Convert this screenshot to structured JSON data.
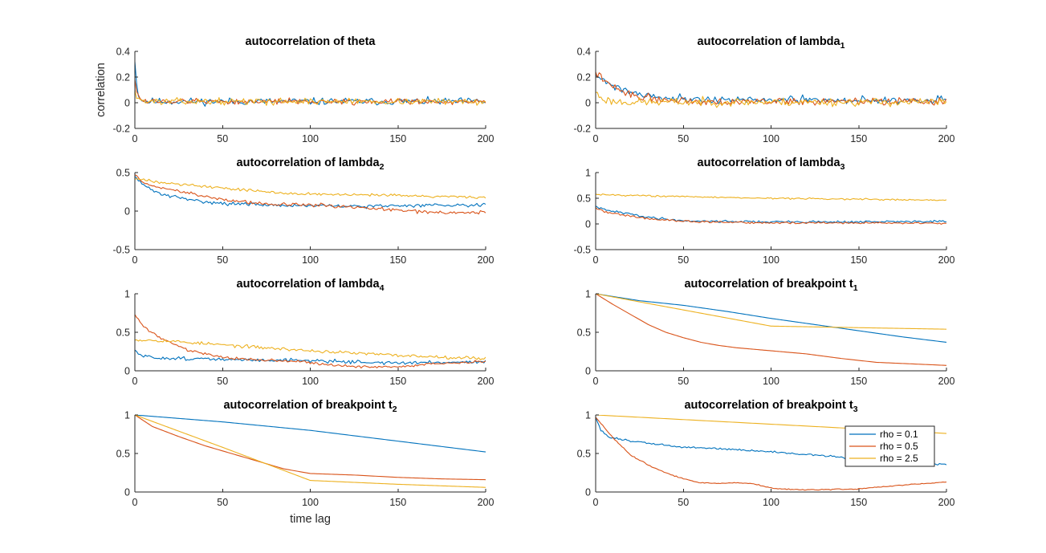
{
  "figure": {
    "legend": {
      "placement": "inside, right of bottom-right panel",
      "entries": [
        "rho = 0.1",
        "rho = 0.5",
        "rho = 2.5"
      ]
    },
    "colors": {
      "rho_0_1": "#0072BD",
      "rho_0_5": "#D95319",
      "rho_2_5": "#EDB120"
    }
  },
  "chart_data": [
    {
      "type": "line",
      "title": "autocorrelation of theta",
      "title_main": "autocorrelation of theta",
      "title_sub": "",
      "xlabel": "",
      "ylabel": "correlation",
      "xlim": [
        0,
        200
      ],
      "ylim": [
        -0.2,
        0.4
      ],
      "xticks": [
        0,
        50,
        100,
        150,
        200
      ],
      "yticks": [
        -0.2,
        0,
        0.2,
        0.4
      ],
      "xtick_labels": [
        "0",
        "50",
        "100",
        "150",
        "200"
      ],
      "ytick_labels": [
        "-0.2",
        "0",
        "0.2",
        "0.4"
      ],
      "grid": false,
      "series": [
        {
          "name": "rho = 0.1",
          "color": "#0072BD",
          "shape": "spike",
          "start": 0.32,
          "k": 1.2,
          "end": 0.01,
          "noise": 0.017,
          "seed": 11
        },
        {
          "name": "rho = 0.5",
          "color": "#D95319",
          "shape": "spike",
          "start": 0.18,
          "k": 1.5,
          "end": 0.01,
          "noise": 0.014,
          "seed": 12
        },
        {
          "name": "rho = 2.5",
          "color": "#EDB120",
          "shape": "spike",
          "start": 0.1,
          "k": 1.5,
          "end": 0.01,
          "noise": 0.015,
          "seed": 13
        }
      ]
    },
    {
      "type": "line",
      "title": "autocorrelation of lambda1",
      "title_main": "autocorrelation of lambda",
      "title_sub": "1",
      "xlabel": "",
      "ylabel": "",
      "xlim": [
        0,
        200
      ],
      "ylim": [
        -0.2,
        0.4
      ],
      "xticks": [
        0,
        50,
        100,
        150,
        200
      ],
      "yticks": [
        -0.2,
        0,
        0.2,
        0.4
      ],
      "xtick_labels": [
        "0",
        "50",
        "100",
        "150",
        "200"
      ],
      "ytick_labels": [
        "-0.2",
        "0",
        "0.2",
        "0.4"
      ],
      "grid": false,
      "series": [
        {
          "name": "rho = 0.1",
          "color": "#0072BD",
          "shape": "exp",
          "start": 0.22,
          "k": 18,
          "end": 0.02,
          "noise": 0.018,
          "seed": 21
        },
        {
          "name": "rho = 0.5",
          "color": "#D95319",
          "shape": "exp",
          "start": 0.24,
          "k": 14,
          "end": 0.01,
          "noise": 0.018,
          "seed": 22
        },
        {
          "name": "rho = 2.5",
          "color": "#EDB120",
          "shape": "exp",
          "start": 0.08,
          "k": 4,
          "end": 0.005,
          "noise": 0.02,
          "seed": 23
        }
      ]
    },
    {
      "type": "line",
      "title": "autocorrelation of lambda2",
      "title_main": "autocorrelation of lambda",
      "title_sub": "2",
      "xlabel": "",
      "ylabel": "",
      "xlim": [
        0,
        200
      ],
      "ylim": [
        -0.5,
        0.5
      ],
      "xticks": [
        0,
        50,
        100,
        150,
        200
      ],
      "yticks": [
        -0.5,
        0,
        0.5
      ],
      "xtick_labels": [
        "0",
        "50",
        "100",
        "150",
        "200"
      ],
      "ytick_labels": [
        "-0.5",
        "0",
        "0.5"
      ],
      "grid": false,
      "series": [
        {
          "name": "rho = 0.1",
          "color": "#0072BD",
          "shape": "points",
          "x": [
            0,
            5,
            15,
            30,
            50,
            75,
            100,
            125,
            150,
            175,
            200
          ],
          "y": [
            0.45,
            0.33,
            0.22,
            0.15,
            0.1,
            0.08,
            0.07,
            0.06,
            0.07,
            0.08,
            0.08
          ],
          "noise": 0.014,
          "seed": 31
        },
        {
          "name": "rho = 0.5",
          "color": "#D95319",
          "shape": "points",
          "x": [
            0,
            5,
            15,
            30,
            50,
            75,
            100,
            125,
            150,
            175,
            200
          ],
          "y": [
            0.47,
            0.36,
            0.3,
            0.24,
            0.15,
            0.09,
            0.08,
            0.05,
            0.01,
            -0.02,
            -0.02
          ],
          "noise": 0.014,
          "seed": 32
        },
        {
          "name": "rho = 2.5",
          "color": "#EDB120",
          "shape": "points",
          "x": [
            0,
            5,
            15,
            30,
            50,
            75,
            100,
            125,
            150,
            175,
            200
          ],
          "y": [
            0.42,
            0.4,
            0.38,
            0.34,
            0.3,
            0.25,
            0.22,
            0.21,
            0.2,
            0.19,
            0.18
          ],
          "noise": 0.012,
          "seed": 33
        }
      ]
    },
    {
      "type": "line",
      "title": "autocorrelation of lambda3",
      "title_main": "autocorrelation of lambda",
      "title_sub": "3",
      "xlabel": "",
      "ylabel": "",
      "xlim": [
        0,
        200
      ],
      "ylim": [
        -0.5,
        1
      ],
      "xticks": [
        0,
        50,
        100,
        150,
        200
      ],
      "yticks": [
        -0.5,
        0,
        0.5,
        1
      ],
      "xtick_labels": [
        "0",
        "50",
        "100",
        "150",
        "200"
      ],
      "ytick_labels": [
        "-0.5",
        "0",
        "0.5",
        "1"
      ],
      "grid": false,
      "series": [
        {
          "name": "rho = 0.1",
          "color": "#0072BD",
          "shape": "points",
          "x": [
            0,
            5,
            15,
            30,
            50,
            75,
            100,
            150,
            200
          ],
          "y": [
            0.35,
            0.27,
            0.22,
            0.13,
            0.06,
            0.05,
            0.04,
            0.04,
            0.05
          ],
          "noise": 0.014,
          "seed": 41
        },
        {
          "name": "rho = 0.5",
          "color": "#D95319",
          "shape": "points",
          "x": [
            0,
            5,
            15,
            30,
            50,
            75,
            100,
            150,
            200
          ],
          "y": [
            0.32,
            0.23,
            0.18,
            0.1,
            0.05,
            0.03,
            0.02,
            0.02,
            0.01
          ],
          "noise": 0.012,
          "seed": 42
        },
        {
          "name": "rho = 2.5",
          "color": "#EDB120",
          "shape": "points",
          "x": [
            0,
            5,
            50,
            100,
            150,
            200
          ],
          "y": [
            0.58,
            0.57,
            0.53,
            0.5,
            0.48,
            0.46
          ],
          "noise": 0.01,
          "seed": 43
        }
      ]
    },
    {
      "type": "line",
      "title": "autocorrelation of lambda4",
      "title_main": "autocorrelation of lambda",
      "title_sub": "4",
      "xlabel": "",
      "ylabel": "",
      "xlim": [
        0,
        200
      ],
      "ylim": [
        0,
        1
      ],
      "xticks": [
        0,
        50,
        100,
        150,
        200
      ],
      "yticks": [
        0,
        0.5,
        1
      ],
      "xtick_labels": [
        "0",
        "50",
        "100",
        "150",
        "200"
      ],
      "ytick_labels": [
        "0",
        "0.5",
        "1"
      ],
      "grid": false,
      "series": [
        {
          "name": "rho = 0.1",
          "color": "#0072BD",
          "shape": "points",
          "x": [
            0,
            3,
            10,
            30,
            60,
            90,
            120,
            150,
            175,
            200
          ],
          "y": [
            0.27,
            0.2,
            0.17,
            0.16,
            0.14,
            0.14,
            0.12,
            0.1,
            0.11,
            0.12
          ],
          "noise": 0.014,
          "seed": 51
        },
        {
          "name": "rho = 0.5",
          "color": "#D95319",
          "shape": "points",
          "x": [
            0,
            5,
            15,
            30,
            50,
            70,
            90,
            110,
            130,
            150,
            175,
            200
          ],
          "y": [
            0.73,
            0.57,
            0.42,
            0.27,
            0.18,
            0.14,
            0.13,
            0.08,
            0.05,
            0.05,
            0.1,
            0.12
          ],
          "noise": 0.01,
          "seed": 52
        },
        {
          "name": "rho = 2.5",
          "color": "#EDB120",
          "shape": "points",
          "x": [
            0,
            10,
            30,
            60,
            100,
            150,
            200
          ],
          "y": [
            0.4,
            0.4,
            0.37,
            0.32,
            0.26,
            0.2,
            0.16
          ],
          "noise": 0.013,
          "seed": 53
        }
      ]
    },
    {
      "type": "line",
      "title": "autocorrelation of breakpoint t1",
      "title_main": "autocorrelation of breakpoint t",
      "title_sub": "1",
      "xlabel": "",
      "ylabel": "",
      "xlim": [
        0,
        200
      ],
      "ylim": [
        0,
        1
      ],
      "xticks": [
        0,
        50,
        100,
        150,
        200
      ],
      "yticks": [
        0,
        0.5,
        1
      ],
      "xtick_labels": [
        "0",
        "50",
        "100",
        "150",
        "200"
      ],
      "ytick_labels": [
        "0",
        "0.5",
        "1"
      ],
      "grid": false,
      "series": [
        {
          "name": "rho = 0.1",
          "color": "#0072BD",
          "shape": "points",
          "x": [
            0,
            25,
            50,
            75,
            100,
            125,
            150,
            175,
            200
          ],
          "y": [
            1.0,
            0.91,
            0.85,
            0.77,
            0.68,
            0.6,
            0.52,
            0.44,
            0.37
          ],
          "noise": 0.0,
          "seed": 61
        },
        {
          "name": "rho = 0.5",
          "color": "#D95319",
          "shape": "points",
          "x": [
            0,
            10,
            20,
            30,
            40,
            50,
            60,
            70,
            80,
            100,
            120,
            140,
            160,
            180,
            200
          ],
          "y": [
            1.0,
            0.86,
            0.73,
            0.6,
            0.5,
            0.43,
            0.37,
            0.33,
            0.3,
            0.26,
            0.22,
            0.16,
            0.11,
            0.09,
            0.07
          ],
          "noise": 0.0,
          "seed": 62
        },
        {
          "name": "rho = 2.5",
          "color": "#EDB120",
          "shape": "points",
          "x": [
            0,
            100,
            150,
            200
          ],
          "y": [
            1.0,
            0.58,
            0.56,
            0.54
          ],
          "noise": 0.0,
          "seed": 63
        }
      ]
    },
    {
      "type": "line",
      "title": "autocorrelation of breakpoint t2",
      "title_main": "autocorrelation of breakpoint t",
      "title_sub": "2",
      "xlabel": "time lag",
      "ylabel": "",
      "xlim": [
        0,
        200
      ],
      "ylim": [
        0,
        1
      ],
      "xticks": [
        0,
        50,
        100,
        150,
        200
      ],
      "yticks": [
        0,
        0.5,
        1
      ],
      "xtick_labels": [
        "0",
        "50",
        "100",
        "150",
        "200"
      ],
      "ytick_labels": [
        "0",
        "0.5",
        "1"
      ],
      "grid": false,
      "series": [
        {
          "name": "rho = 0.1",
          "color": "#0072BD",
          "shape": "points",
          "x": [
            0,
            50,
            100,
            150,
            200
          ],
          "y": [
            1.0,
            0.91,
            0.8,
            0.66,
            0.52
          ],
          "noise": 0.0,
          "seed": 71
        },
        {
          "name": "rho = 0.5",
          "color": "#D95319",
          "shape": "points",
          "x": [
            0,
            10,
            25,
            40,
            55,
            70,
            85,
            100,
            125,
            150,
            175,
            200
          ],
          "y": [
            1.0,
            0.85,
            0.72,
            0.6,
            0.5,
            0.4,
            0.3,
            0.24,
            0.22,
            0.19,
            0.17,
            0.16
          ],
          "noise": 0.0,
          "seed": 72
        },
        {
          "name": "rho = 2.5",
          "color": "#EDB120",
          "shape": "points",
          "x": [
            0,
            50,
            100,
            150,
            200
          ],
          "y": [
            1.0,
            0.58,
            0.15,
            0.1,
            0.06
          ],
          "noise": 0.0,
          "seed": 73
        }
      ]
    },
    {
      "type": "line",
      "title": "autocorrelation of breakpoint t3",
      "title_main": "autocorrelation of breakpoint t",
      "title_sub": "3",
      "xlabel": "",
      "ylabel": "",
      "xlim": [
        0,
        200
      ],
      "ylim": [
        0,
        1
      ],
      "xticks": [
        0,
        50,
        100,
        150,
        200
      ],
      "yticks": [
        0,
        0.5,
        1
      ],
      "xtick_labels": [
        "0",
        "50",
        "100",
        "150",
        "200"
      ],
      "ytick_labels": [
        "0",
        "0.5",
        "1"
      ],
      "grid": false,
      "series": [
        {
          "name": "rho = 0.1",
          "color": "#0072BD",
          "shape": "points",
          "x": [
            0,
            3,
            8,
            20,
            50,
            75,
            100,
            125,
            150,
            175,
            200
          ],
          "y": [
            0.97,
            0.8,
            0.71,
            0.66,
            0.58,
            0.56,
            0.52,
            0.48,
            0.43,
            0.38,
            0.36
          ],
          "noise": 0.008,
          "seed": 81
        },
        {
          "name": "rho = 0.5",
          "color": "#D95319",
          "shape": "points",
          "x": [
            0,
            10,
            20,
            30,
            40,
            50,
            60,
            70,
            80,
            90,
            100,
            115,
            130,
            150,
            175,
            200
          ],
          "y": [
            0.97,
            0.7,
            0.48,
            0.35,
            0.25,
            0.17,
            0.12,
            0.11,
            0.12,
            0.11,
            0.05,
            0.03,
            0.03,
            0.04,
            0.09,
            0.13
          ],
          "noise": 0.004,
          "seed": 82
        },
        {
          "name": "rho = 2.5",
          "color": "#EDB120",
          "shape": "points",
          "x": [
            0,
            200
          ],
          "y": [
            1.0,
            0.76
          ],
          "noise": 0.0,
          "seed": 83
        }
      ]
    }
  ]
}
